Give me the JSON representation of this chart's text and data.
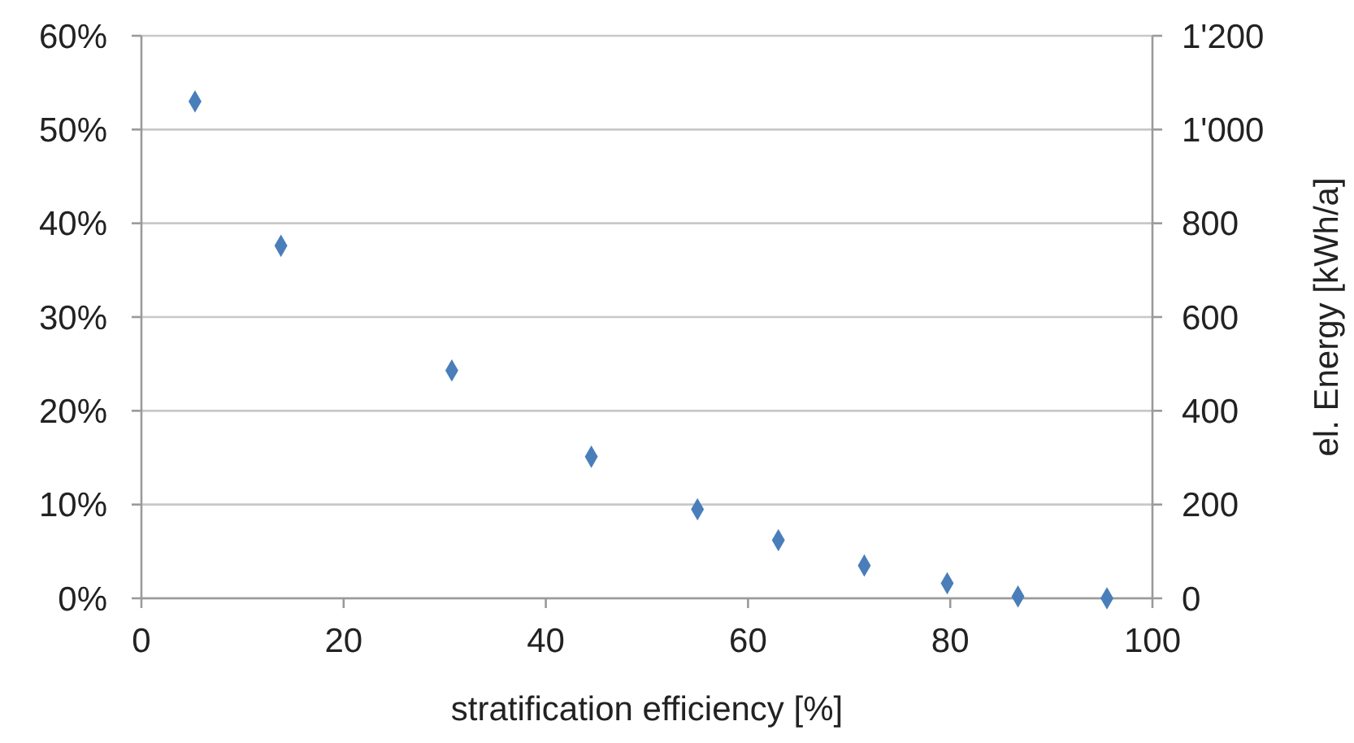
{
  "chart_data": {
    "type": "scatter",
    "xlabel": "stratification efficiency [%]",
    "y2label": "el. Energy [kWh/a]",
    "x": [
      5.3,
      13.8,
      30.7,
      44.5,
      55.0,
      63.0,
      71.5,
      79.7,
      86.7,
      95.5
    ],
    "series": [
      {
        "color": "#4a7ebb",
        "values": [
          53.0,
          37.6,
          24.3,
          15.1,
          9.5,
          6.2,
          3.5,
          1.6,
          0.2,
          0
        ]
      }
    ],
    "xlim": [
      0,
      100
    ],
    "xticks": [
      0,
      20,
      40,
      60,
      80,
      100
    ],
    "ylim": [
      0,
      60
    ],
    "yticks": [
      {
        "value": 0,
        "label": "0%"
      },
      {
        "value": 10,
        "label": "10%"
      },
      {
        "value": 20,
        "label": "20%"
      },
      {
        "value": 30,
        "label": "30%"
      },
      {
        "value": 40,
        "label": "40%"
      },
      {
        "value": 50,
        "label": "50%"
      },
      {
        "value": 60,
        "label": "60%"
      }
    ],
    "y2lim": [
      0,
      1200
    ],
    "y2ticks": [
      0,
      200,
      400,
      600,
      800,
      {
        "value": 1000,
        "label": "1'000"
      },
      {
        "value": 1200,
        "label": "1'200"
      }
    ],
    "grid": "y",
    "marker": "diamond"
  }
}
